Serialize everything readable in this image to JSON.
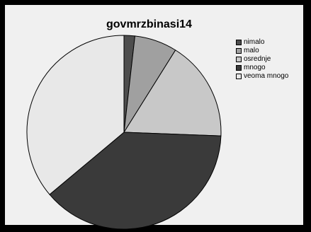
{
  "chart_data": {
    "type": "pie",
    "title": "govmrzbinasi14",
    "legend_position": "top-right",
    "categories": [
      "nimalo",
      "malo",
      "osrednje",
      "mnogo",
      "veoma mnogo"
    ],
    "values": [
      1.8,
      7.1,
      16.7,
      38.3,
      36.1
    ],
    "unit": "percent",
    "colors": [
      "#4d4d4d",
      "#a0a0a0",
      "#c8c8c8",
      "#3a3a3a",
      "#e8e8e8"
    ],
    "start_angle_deg": 0,
    "direction": "clockwise"
  }
}
